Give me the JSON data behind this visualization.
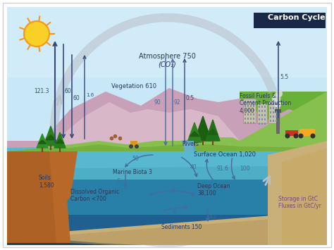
{
  "title": "Carbon Cycle",
  "bg_outer": "#ffffff",
  "sky_top": "#c8e8f8",
  "sky_mid": "#a0d0f0",
  "sky_low": "#80c0e8",
  "land_green": "#88c050",
  "land_green2": "#70a840",
  "land_dark_green": "#508030",
  "mountain_pink": "#c8a0b8",
  "mountain_pink2": "#d8b8c8",
  "soil_brown": "#b86828",
  "ocean_surf": "#58b8d0",
  "ocean_teal": "#48a8c0",
  "ocean_deep": "#2880a8",
  "ocean_darker": "#206090",
  "sediment_tan": "#c8b078",
  "sediment_dark": "#a89050",
  "arrow_dark": "#384878",
  "arrow_blue": "#4868a0",
  "outer_circle": "#b8bfc8",
  "sun_yellow": "#f8d028",
  "sun_orange": "#f89818",
  "text_dark": "#283858",
  "text_purple": "#784878",
  "white": "#ffffff",
  "legend1": "Storage in GtC",
  "legend2": "Fluxes in GtC/yr"
}
